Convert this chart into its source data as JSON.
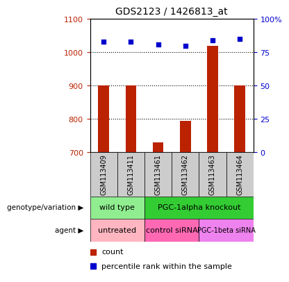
{
  "title": "GDS2123 / 1426813_at",
  "samples": [
    "GSM113409",
    "GSM113411",
    "GSM113461",
    "GSM113462",
    "GSM113463",
    "GSM113464"
  ],
  "bar_values": [
    900,
    900,
    730,
    795,
    1020,
    900
  ],
  "scatter_values": [
    83,
    83,
    81,
    80,
    84,
    85
  ],
  "bar_color": "#BB2200",
  "scatter_color": "#0000CC",
  "ylim_left": [
    700,
    1100
  ],
  "ylim_right": [
    0,
    100
  ],
  "yticks_left": [
    700,
    800,
    900,
    1000,
    1100
  ],
  "yticks_right": [
    0,
    25,
    50,
    75,
    100
  ],
  "grid_values": [
    800,
    900,
    1000
  ],
  "genotype_labels": [
    {
      "label": "wild type",
      "cols": [
        0,
        1
      ],
      "color": "#90EE90"
    },
    {
      "label": "PGC-1alpha knockout",
      "cols": [
        2,
        3,
        4,
        5
      ],
      "color": "#33CC33"
    }
  ],
  "agent_labels": [
    {
      "label": "untreated",
      "cols": [
        0,
        1
      ],
      "color": "#FFB6C1"
    },
    {
      "label": "control siRNA",
      "cols": [
        2,
        3
      ],
      "color": "#FF69B4"
    },
    {
      "label": "PGC-1beta siRNA",
      "cols": [
        4,
        5
      ],
      "color": "#EE82EE"
    }
  ],
  "legend_count_color": "#BB2200",
  "legend_scatter_color": "#0000CC",
  "label_row1": "genotype/variation",
  "label_row2": "agent",
  "sample_bg_color": "#CCCCCC",
  "arrow_color": "#999999"
}
